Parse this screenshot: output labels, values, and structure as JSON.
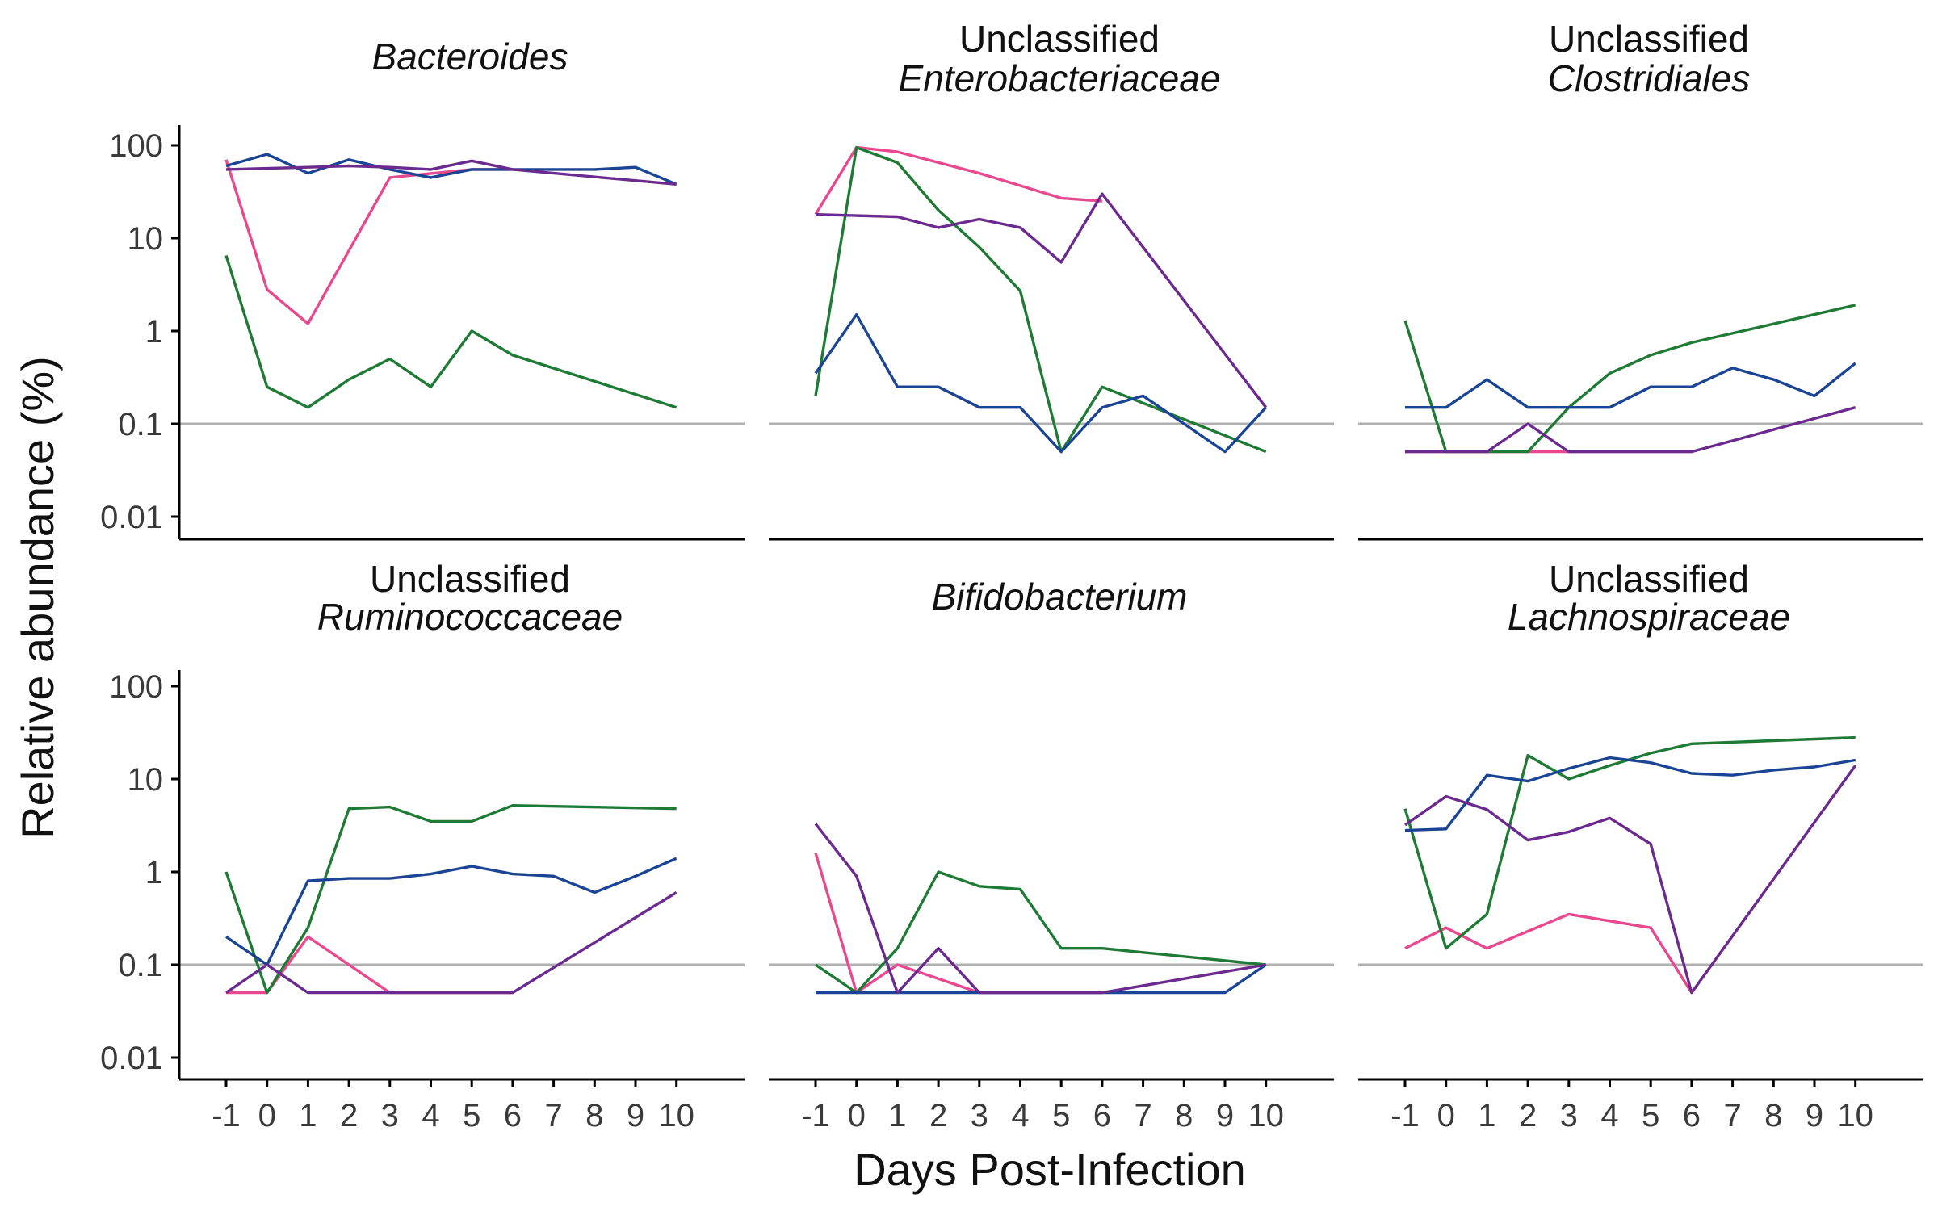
{
  "chart_data": {
    "type": "line",
    "xlabel": "Days Post-Infection",
    "ylabel": "Relative abundance (%)",
    "x": [
      -1,
      0,
      1,
      2,
      3,
      4,
      5,
      6,
      7,
      8,
      9,
      10
    ],
    "x_ticks": [
      "-1",
      "0",
      "1",
      "2",
      "3",
      "4",
      "5",
      "6",
      "7",
      "8",
      "9",
      "10"
    ],
    "y_scale": "log10",
    "y_range": [
      0.01,
      100
    ],
    "y_ticks": [
      "100",
      "10",
      "1",
      "0.1",
      "0.01"
    ],
    "reference_line": 0.1,
    "grid": false,
    "colors": {
      "pink": "#e8488e",
      "green": "#1f7a36",
      "blue": "#1b4594",
      "purple": "#6a2a8e",
      "reference": "#b0b0b0"
    },
    "panels": [
      {
        "title_line1": "",
        "title_line2": "Bacteroides",
        "series": [
          {
            "color": "pink",
            "points": [
              [
                -1,
                70
              ],
              [
                0,
                2.8
              ],
              [
                1,
                1.2
              ],
              [
                3,
                45
              ],
              [
                5,
                55
              ],
              [
                6,
                55
              ]
            ]
          },
          {
            "color": "green",
            "points": [
              [
                -1,
                6.5
              ],
              [
                0,
                0.25
              ],
              [
                1,
                0.15
              ],
              [
                2,
                0.3
              ],
              [
                3,
                0.5
              ],
              [
                4,
                0.25
              ],
              [
                5,
                1.0
              ],
              [
                6,
                0.55
              ],
              [
                10,
                0.15
              ]
            ]
          },
          {
            "color": "blue",
            "points": [
              [
                -1,
                60
              ],
              [
                0,
                80
              ],
              [
                1,
                50
              ],
              [
                2,
                70
              ],
              [
                3,
                55
              ],
              [
                4,
                45
              ],
              [
                5,
                55
              ],
              [
                6,
                55
              ],
              [
                8,
                55
              ],
              [
                9,
                58
              ],
              [
                10,
                38
              ]
            ]
          },
          {
            "color": "purple",
            "points": [
              [
                -1,
                55
              ],
              [
                1,
                58
              ],
              [
                2,
                60
              ],
              [
                3,
                58
              ],
              [
                4,
                55
              ],
              [
                5,
                68
              ],
              [
                6,
                55
              ],
              [
                10,
                38
              ]
            ]
          }
        ]
      },
      {
        "title_line1": "Unclassified",
        "title_line2": "Enterobacteriaceae",
        "series": [
          {
            "color": "pink",
            "points": [
              [
                -1,
                18
              ],
              [
                0,
                95
              ],
              [
                1,
                85
              ],
              [
                3,
                50
              ],
              [
                5,
                27
              ],
              [
                6,
                25
              ]
            ]
          },
          {
            "color": "green",
            "points": [
              [
                -1,
                0.2
              ],
              [
                0,
                95
              ],
              [
                1,
                65
              ],
              [
                2,
                20
              ],
              [
                3,
                8
              ],
              [
                4,
                2.7
              ],
              [
                5,
                0.05
              ],
              [
                6,
                0.25
              ],
              [
                10,
                0.05
              ]
            ]
          },
          {
            "color": "blue",
            "points": [
              [
                -1,
                0.35
              ],
              [
                0,
                1.5
              ],
              [
                1,
                0.25
              ],
              [
                2,
                0.25
              ],
              [
                3,
                0.15
              ],
              [
                4,
                0.15
              ],
              [
                5,
                0.05
              ],
              [
                6,
                0.15
              ],
              [
                7,
                0.2
              ],
              [
                8,
                0.1
              ],
              [
                9,
                0.05
              ],
              [
                10,
                0.15
              ]
            ]
          },
          {
            "color": "purple",
            "points": [
              [
                -1,
                18
              ],
              [
                1,
                17
              ],
              [
                2,
                13
              ],
              [
                3,
                16
              ],
              [
                4,
                13
              ],
              [
                5,
                5.5
              ],
              [
                6,
                30
              ],
              [
                10,
                0.15
              ]
            ]
          }
        ]
      },
      {
        "title_line1": "Unclassified",
        "title_line2": "Clostridiales",
        "series": [
          {
            "color": "pink",
            "points": [
              [
                -1,
                0.05
              ],
              [
                1,
                0.05
              ],
              [
                3,
                0.05
              ],
              [
                6,
                0.05
              ]
            ]
          },
          {
            "color": "green",
            "points": [
              [
                -1,
                1.3
              ],
              [
                0,
                0.05
              ],
              [
                1,
                0.05
              ],
              [
                2,
                0.05
              ],
              [
                3,
                0.15
              ],
              [
                4,
                0.35
              ],
              [
                5,
                0.55
              ],
              [
                6,
                0.75
              ],
              [
                10,
                1.9
              ]
            ]
          },
          {
            "color": "blue",
            "points": [
              [
                -1,
                0.15
              ],
              [
                0,
                0.15
              ],
              [
                1,
                0.3
              ],
              [
                2,
                0.15
              ],
              [
                3,
                0.15
              ],
              [
                4,
                0.15
              ],
              [
                5,
                0.25
              ],
              [
                6,
                0.25
              ],
              [
                7,
                0.4
              ],
              [
                8,
                0.3
              ],
              [
                9,
                0.2
              ],
              [
                10,
                0.45
              ]
            ]
          },
          {
            "color": "purple",
            "points": [
              [
                -1,
                0.05
              ],
              [
                1,
                0.05
              ],
              [
                2,
                0.1
              ],
              [
                3,
                0.05
              ],
              [
                4,
                0.05
              ],
              [
                5,
                0.05
              ],
              [
                6,
                0.05
              ],
              [
                10,
                0.15
              ]
            ]
          }
        ]
      },
      {
        "title_line1": "Unclassified",
        "title_line2": "Ruminococcaceae",
        "series": [
          {
            "color": "pink",
            "points": [
              [
                -1,
                0.05
              ],
              [
                0,
                0.05
              ],
              [
                1,
                0.2
              ],
              [
                3,
                0.05
              ],
              [
                5,
                0.05
              ],
              [
                6,
                0.05
              ]
            ]
          },
          {
            "color": "green",
            "points": [
              [
                -1,
                1.0
              ],
              [
                0,
                0.05
              ],
              [
                1,
                0.25
              ],
              [
                2,
                4.8
              ],
              [
                3,
                5.0
              ],
              [
                4,
                3.5
              ],
              [
                5,
                3.5
              ],
              [
                6,
                5.2
              ],
              [
                10,
                4.8
              ]
            ]
          },
          {
            "color": "blue",
            "points": [
              [
                -1,
                0.2
              ],
              [
                0,
                0.1
              ],
              [
                1,
                0.8
              ],
              [
                2,
                0.85
              ],
              [
                3,
                0.85
              ],
              [
                4,
                0.95
              ],
              [
                5,
                1.15
              ],
              [
                6,
                0.95
              ],
              [
                7,
                0.9
              ],
              [
                8,
                0.6
              ],
              [
                9,
                0.9
              ],
              [
                10,
                1.4
              ]
            ]
          },
          {
            "color": "purple",
            "points": [
              [
                -1,
                0.05
              ],
              [
                0,
                0.1
              ],
              [
                1,
                0.05
              ],
              [
                2,
                0.05
              ],
              [
                3,
                0.05
              ],
              [
                4,
                0.05
              ],
              [
                5,
                0.05
              ],
              [
                6,
                0.05
              ],
              [
                10,
                0.6
              ]
            ]
          }
        ]
      },
      {
        "title_line1": "",
        "title_line2": "Bifidobacterium",
        "series": [
          {
            "color": "pink",
            "points": [
              [
                -1,
                1.6
              ],
              [
                0,
                0.05
              ],
              [
                1,
                0.1
              ],
              [
                3,
                0.05
              ],
              [
                5,
                0.05
              ],
              [
                6,
                0.05
              ]
            ]
          },
          {
            "color": "green",
            "points": [
              [
                -1,
                0.1
              ],
              [
                0,
                0.05
              ],
              [
                1,
                0.15
              ],
              [
                2,
                1.0
              ],
              [
                3,
                0.7
              ],
              [
                4,
                0.65
              ],
              [
                5,
                0.15
              ],
              [
                6,
                0.15
              ],
              [
                10,
                0.1
              ]
            ]
          },
          {
            "color": "blue",
            "points": [
              [
                -1,
                0.05
              ],
              [
                0,
                0.05
              ],
              [
                1,
                0.05
              ],
              [
                2,
                0.05
              ],
              [
                3,
                0.05
              ],
              [
                4,
                0.05
              ],
              [
                5,
                0.05
              ],
              [
                6,
                0.05
              ],
              [
                7,
                0.05
              ],
              [
                8,
                0.05
              ],
              [
                9,
                0.05
              ],
              [
                10,
                0.1
              ]
            ]
          },
          {
            "color": "purple",
            "points": [
              [
                -1,
                3.3
              ],
              [
                0,
                0.9
              ],
              [
                1,
                0.05
              ],
              [
                2,
                0.15
              ],
              [
                3,
                0.05
              ],
              [
                4,
                0.05
              ],
              [
                5,
                0.05
              ],
              [
                6,
                0.05
              ],
              [
                10,
                0.1
              ]
            ]
          }
        ]
      },
      {
        "title_line1": "Unclassified",
        "title_line2": "Lachnospiraceae",
        "series": [
          {
            "color": "pink",
            "points": [
              [
                -1,
                0.15
              ],
              [
                0,
                0.25
              ],
              [
                1,
                0.15
              ],
              [
                3,
                0.35
              ],
              [
                5,
                0.25
              ],
              [
                6,
                0.05
              ]
            ]
          },
          {
            "color": "green",
            "points": [
              [
                -1,
                4.8
              ],
              [
                0,
                0.15
              ],
              [
                1,
                0.35
              ],
              [
                2,
                18
              ],
              [
                3,
                10
              ],
              [
                4,
                14
              ],
              [
                5,
                19
              ],
              [
                6,
                24
              ],
              [
                10,
                28
              ]
            ]
          },
          {
            "color": "blue",
            "points": [
              [
                -1,
                2.8
              ],
              [
                0,
                2.9
              ],
              [
                1,
                11
              ],
              [
                2,
                9.5
              ],
              [
                3,
                13
              ],
              [
                4,
                17
              ],
              [
                5,
                15
              ],
              [
                6,
                11.5
              ],
              [
                7,
                11
              ],
              [
                8,
                12.5
              ],
              [
                9,
                13.5
              ],
              [
                10,
                16
              ]
            ]
          },
          {
            "color": "purple",
            "points": [
              [
                -1,
                3.2
              ],
              [
                0,
                6.5
              ],
              [
                1,
                4.7
              ],
              [
                2,
                2.2
              ],
              [
                3,
                2.7
              ],
              [
                4,
                3.8
              ],
              [
                5,
                2.0
              ],
              [
                6,
                0.05
              ],
              [
                10,
                14
              ]
            ]
          }
        ]
      }
    ]
  }
}
